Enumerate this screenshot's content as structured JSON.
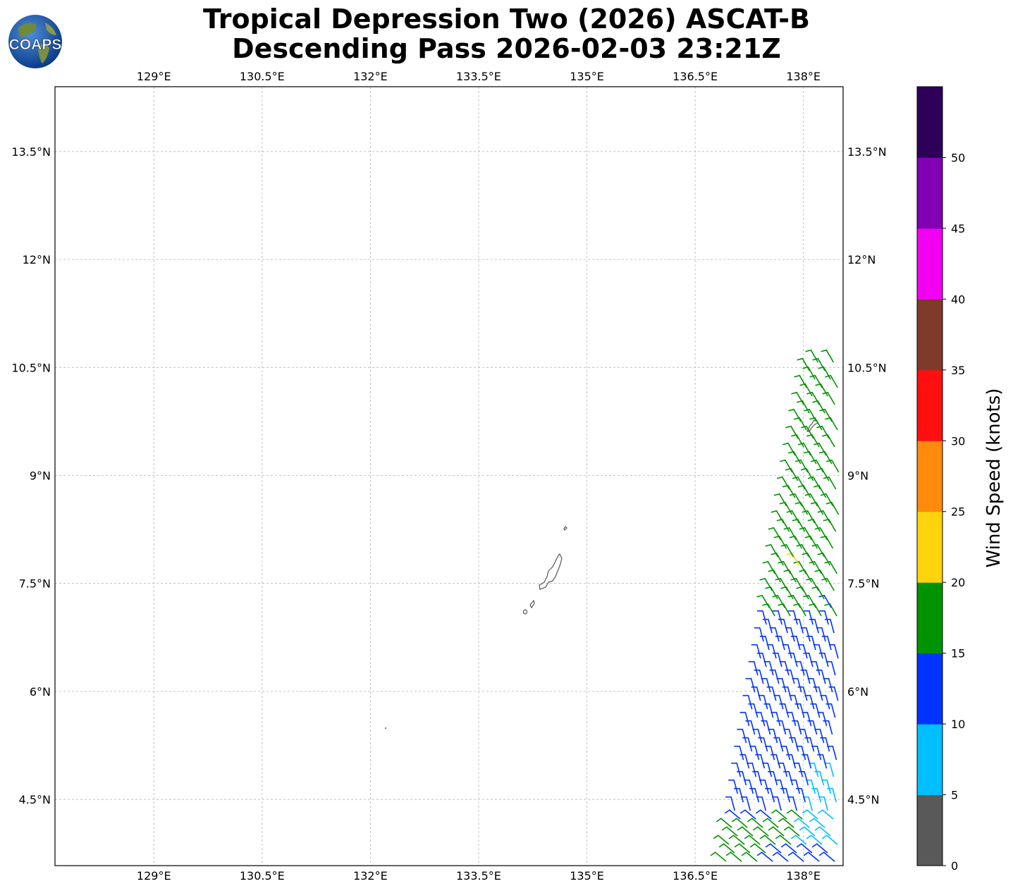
{
  "title": {
    "line1": "Tropical Depression Two (2026) ASCAT-B",
    "line2": "Descending Pass 2026-02-03 23:21Z"
  },
  "logo": {
    "text": "COAPS"
  },
  "map": {
    "lon_ticks": [
      "129°E",
      "130.5°E",
      "132°E",
      "133.5°E",
      "135°E",
      "136.5°E",
      "138°E"
    ],
    "lat_ticks": [
      "13.5°N",
      "12°N",
      "10.5°N",
      "9°N",
      "7.5°N",
      "6°N",
      "4.5°N"
    ],
    "lon_range": [
      127.63,
      138.55
    ],
    "lat_range": [
      3.58,
      14.4
    ],
    "grid": true
  },
  "colorbar": {
    "title": "Wind Speed (knots)",
    "ticks": [
      "0",
      "5",
      "10",
      "15",
      "20",
      "25",
      "30",
      "35",
      "40",
      "45",
      "50"
    ],
    "colors": [
      "#595959",
      "#00bfff",
      "#0033ff",
      "#009300",
      "#ffd30d",
      "#ff8a0d",
      "#ff0f0f",
      "#803a2a",
      "#f200f2",
      "#8000b3",
      "#2d005a"
    ]
  },
  "colors": {
    "calm": "#595959",
    "light": "#00bfff",
    "moderate": "#0033ff",
    "fresh": "#009300",
    "strong": "#ffd30d",
    "coast": "#555555"
  }
}
